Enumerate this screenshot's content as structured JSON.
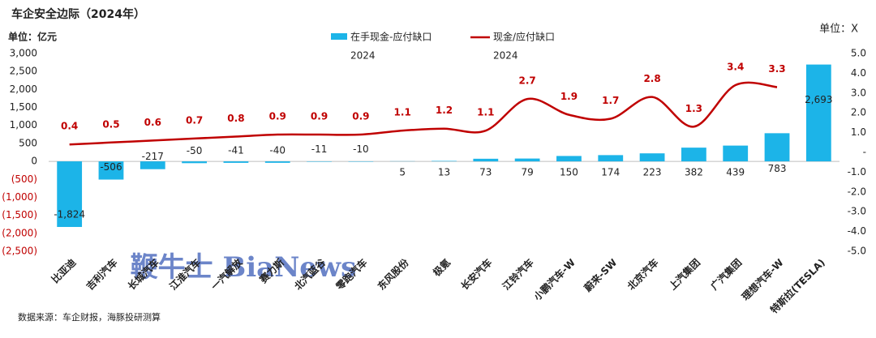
{
  "chart_data": {
    "type": "bar_line",
    "title": "车企安全边际（2024年）",
    "y_unit": "单位：亿元",
    "y2_unit": "单位：X",
    "source": "数据来源：车企财报，海豚投研测算",
    "watermark": "鞭牛士 BiaNews",
    "categories": [
      "比亚迪",
      "吉利汽车",
      "长城汽车",
      "江淮汽车",
      "一汽解放",
      "赛力斯",
      "北汽蓝谷",
      "零跑汽车",
      "东风股份",
      "极氪",
      "长安汽车",
      "江铃汽车",
      "小鹏汽车-W",
      "蔚来-SW",
      "北京汽车",
      "上汽集团",
      "广汽集团",
      "理想汽车-W",
      "特斯拉(TESLA)"
    ],
    "series": [
      {
        "name": "在手现金-应付缺口",
        "legend_year": "2024",
        "type": "bar",
        "color": "#1cb4e8",
        "values": [
          -1824,
          -506,
          -217,
          -50,
          -41,
          -40,
          -11,
          -10,
          5,
          13,
          73,
          79,
          150,
          174,
          223,
          382,
          439,
          783,
          2693
        ],
        "value_labels": [
          "-1,824",
          "-506",
          "-217",
          "-50",
          "-41",
          "-40",
          "-11",
          "-10",
          "5",
          "13",
          "73",
          "79",
          "150",
          "174",
          "223",
          "382",
          "439",
          "783",
          "2,693"
        ]
      },
      {
        "name": "现金/应付缺口",
        "legend_year": "2024",
        "type": "line",
        "axis": "y2",
        "color": "#c00000",
        "values": [
          0.4,
          0.5,
          0.6,
          0.7,
          0.8,
          0.9,
          0.9,
          0.9,
          1.1,
          1.2,
          1.1,
          2.7,
          1.9,
          1.7,
          2.8,
          1.3,
          3.4,
          3.3,
          null
        ]
      }
    ],
    "ylim": [
      -2500,
      3000
    ],
    "yticks": [
      {
        "value": 3000,
        "label": "3,000"
      },
      {
        "value": 2500,
        "label": "2,500"
      },
      {
        "value": 2000,
        "label": "2,000"
      },
      {
        "value": 1500,
        "label": "1,500"
      },
      {
        "value": 1000,
        "label": "1,000"
      },
      500,
      0,
      {
        "value": -500,
        "label": "(500)"
      },
      {
        "value": -1000,
        "label": "(1,000)"
      },
      {
        "value": -1500,
        "label": "(1,500)"
      },
      {
        "value": -2000,
        "label": "(2,000)"
      },
      {
        "value": -2500,
        "label": "(2,500)"
      }
    ],
    "negative_tick_color": "#c00000",
    "y2lim": [
      -5,
      5
    ],
    "y2ticks": [
      {
        "value": 5,
        "label": "5.0"
      },
      {
        "value": 4,
        "label": "4.0"
      },
      {
        "value": 3,
        "label": "3.0"
      },
      {
        "value": 2,
        "label": "2.0"
      },
      {
        "value": 1,
        "label": "1.0"
      },
      {
        "value": 0,
        "label": "-"
      },
      {
        "value": -1,
        "label": "-1.0"
      },
      {
        "value": -2,
        "label": "-2.0"
      },
      {
        "value": -3,
        "label": "-3.0"
      },
      {
        "value": -4,
        "label": "-4.0"
      },
      {
        "value": -5,
        "label": "-5.0"
      }
    ]
  }
}
